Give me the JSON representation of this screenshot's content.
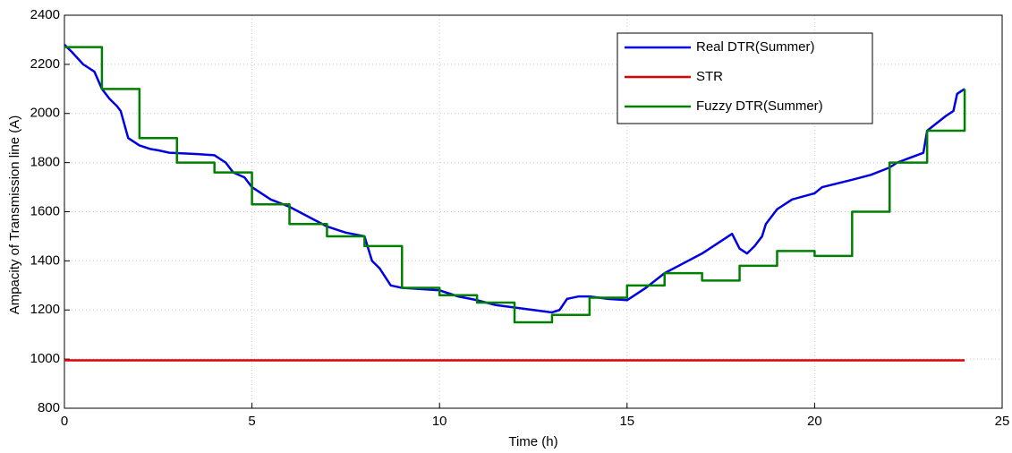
{
  "chart_data": {
    "type": "line",
    "xlabel": "Time (h)",
    "ylabel": "Ampacity of Transmission line (A)",
    "xlim": [
      0,
      25
    ],
    "xticks": [
      0,
      5,
      10,
      15,
      20,
      25
    ],
    "ylim": [
      800,
      2400
    ],
    "yticks": [
      800,
      1000,
      1200,
      1400,
      1600,
      1800,
      2000,
      2200,
      2400
    ],
    "grid": true,
    "legend": "upper right",
    "series": [
      {
        "name": "Real DTR(Summer)",
        "color": "#0000e0",
        "x": [
          0,
          0.2,
          0.5,
          0.8,
          1.0,
          1.2,
          1.4,
          1.5,
          1.7,
          2.0,
          2.3,
          2.5,
          2.8,
          3.5,
          4.0,
          4.3,
          4.5,
          4.8,
          5.0,
          5.5,
          6.0,
          6.5,
          7.0,
          7.5,
          8.0,
          8.2,
          8.4,
          8.7,
          9.0,
          9.5,
          10.0,
          10.5,
          11.0,
          11.5,
          12.0,
          12.5,
          13.0,
          13.2,
          13.4,
          13.7,
          14.0,
          14.5,
          15.0,
          15.5,
          16.0,
          17.0,
          17.8,
          18.0,
          18.2,
          18.4,
          18.6,
          18.7,
          19.0,
          19.4,
          20.0,
          20.2,
          21.0,
          21.5,
          22.0,
          22.2,
          22.9,
          23.0,
          23.5,
          23.7,
          23.8,
          24.0
        ],
        "values": [
          2280,
          2250,
          2200,
          2170,
          2100,
          2060,
          2030,
          2010,
          1900,
          1870,
          1855,
          1850,
          1840,
          1835,
          1830,
          1800,
          1760,
          1740,
          1700,
          1650,
          1620,
          1580,
          1540,
          1515,
          1500,
          1400,
          1370,
          1300,
          1290,
          1285,
          1280,
          1255,
          1240,
          1220,
          1210,
          1200,
          1190,
          1200,
          1245,
          1255,
          1255,
          1245,
          1240,
          1290,
          1350,
          1430,
          1510,
          1450,
          1430,
          1460,
          1500,
          1550,
          1610,
          1650,
          1675,
          1700,
          1730,
          1750,
          1780,
          1800,
          1840,
          1930,
          1990,
          2010,
          2080,
          2100
        ]
      },
      {
        "name": "STR",
        "color": "#e00000",
        "x": [
          0,
          24
        ],
        "values": [
          995,
          995
        ]
      },
      {
        "name": "Fuzzy DTR(Summer)",
        "color": "#008000",
        "step": "post",
        "x": [
          0,
          1,
          2,
          3,
          4,
          5,
          6,
          7,
          8,
          9,
          10,
          11,
          12,
          13,
          14,
          15,
          16,
          17,
          18,
          19,
          20,
          21,
          22,
          23,
          24
        ],
        "values": [
          2270,
          2100,
          1900,
          1800,
          1760,
          1630,
          1550,
          1500,
          1460,
          1290,
          1260,
          1230,
          1150,
          1180,
          1250,
          1300,
          1350,
          1320,
          1380,
          1440,
          1420,
          1600,
          1800,
          1930,
          2100
        ]
      }
    ]
  }
}
